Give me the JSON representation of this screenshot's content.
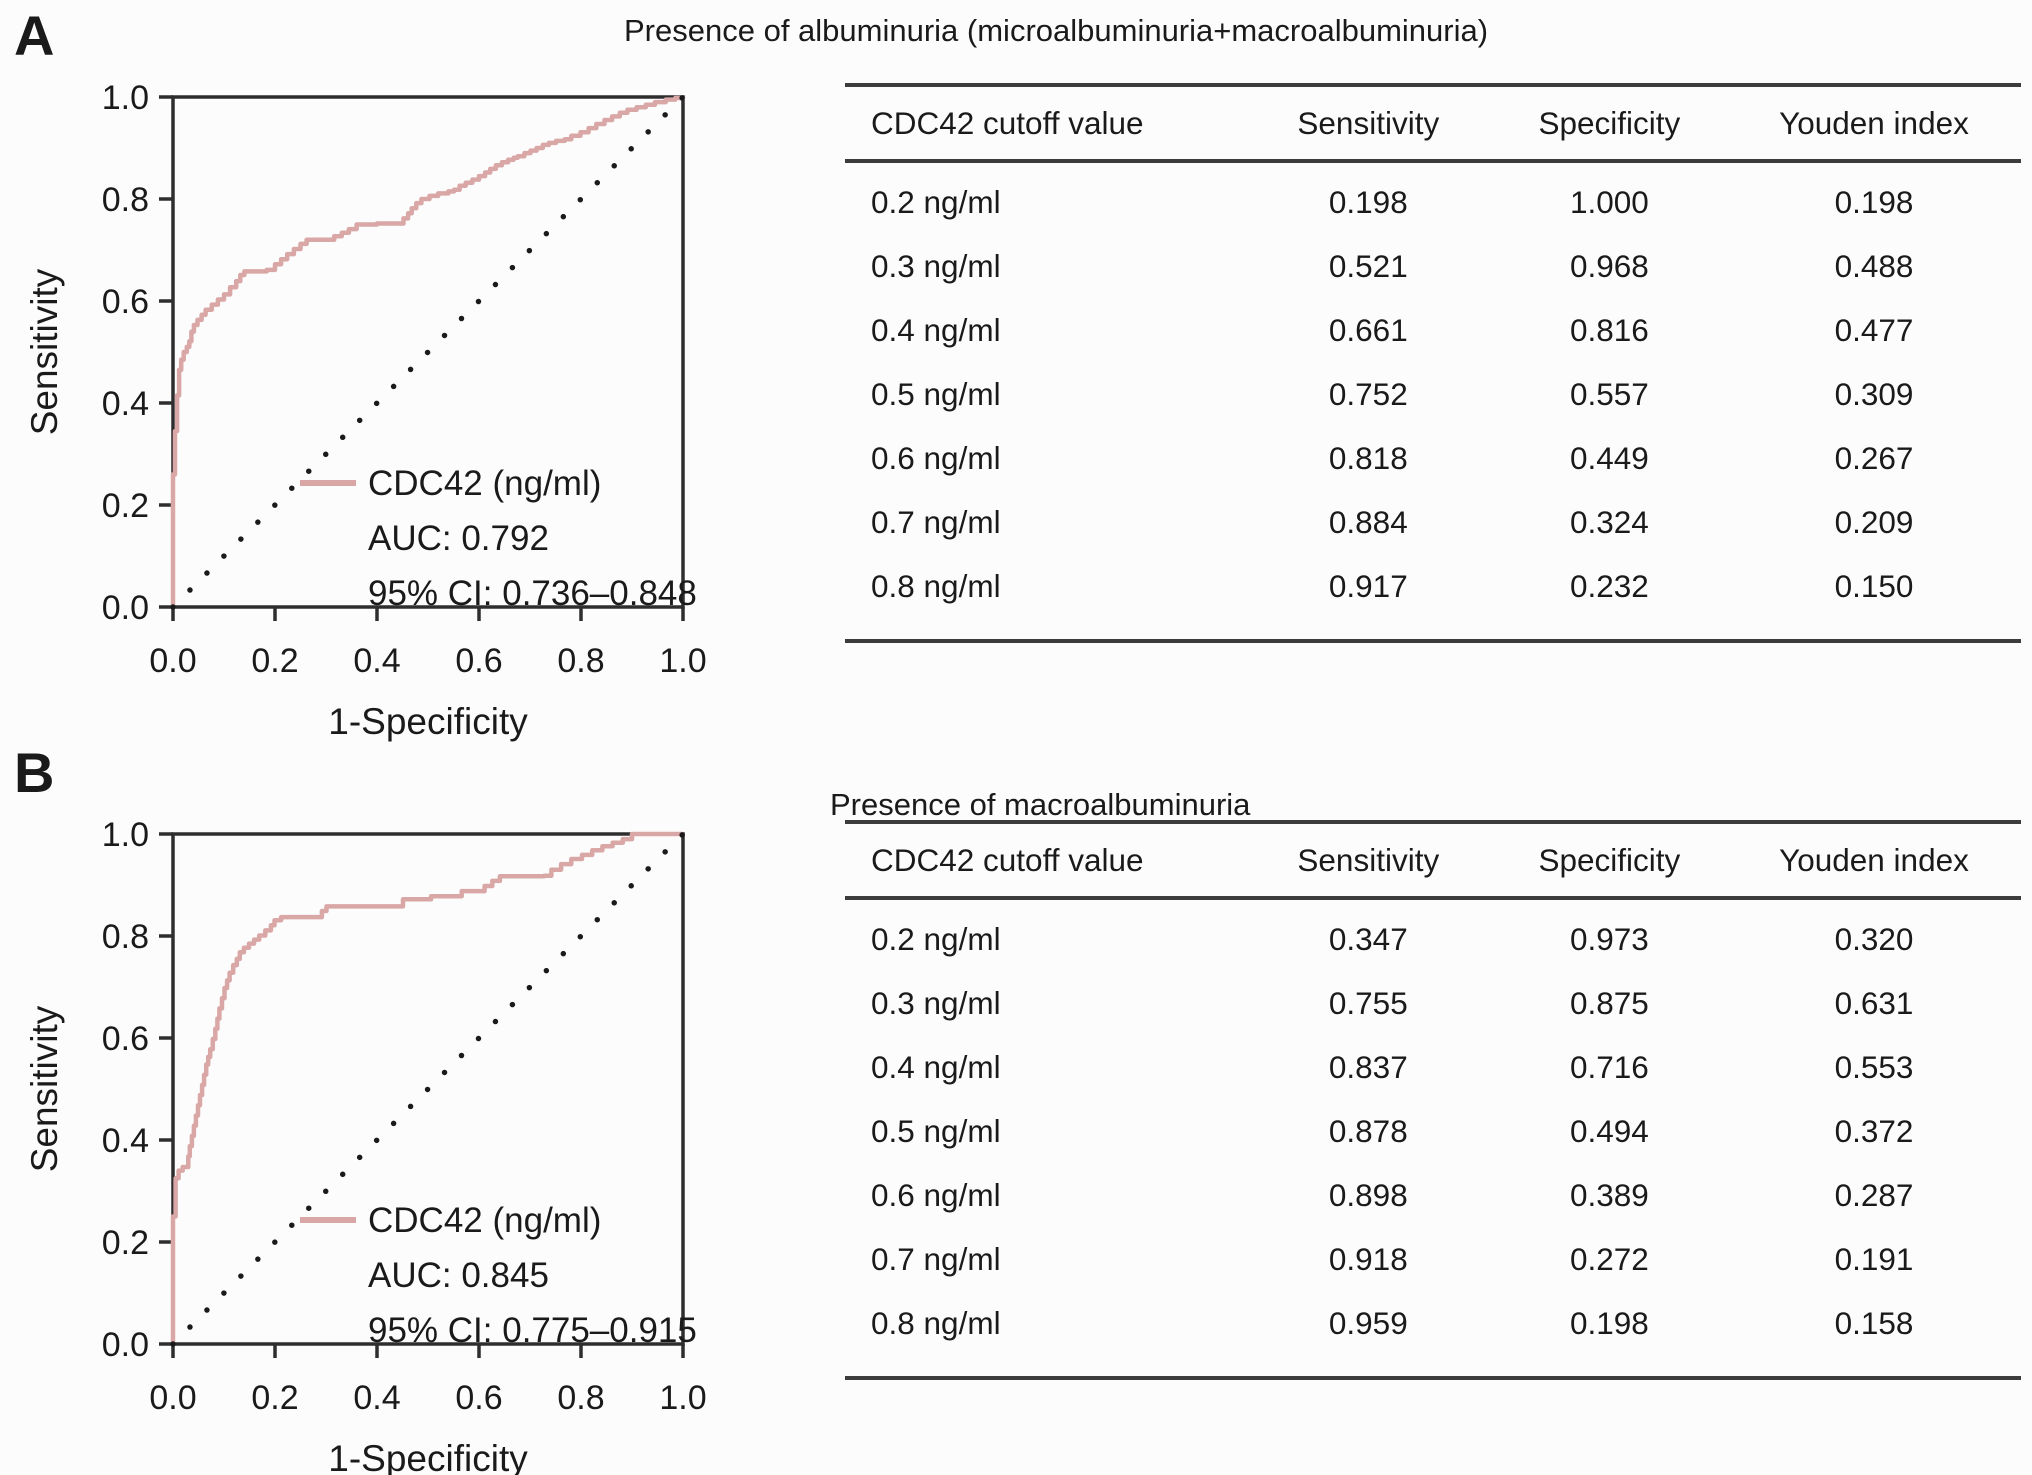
{
  "colors": {
    "curve": "#d9a7a6",
    "axis": "#2e2e2e",
    "text": "#1a1a1a",
    "rule": "#3c3c3c",
    "dots": "#1a1a1a",
    "background": "#fcfcfc"
  },
  "panels": [
    {
      "label": "A",
      "title": "Presence of albuminuria (microalbuminuria+macroalbuminuria)",
      "legend": {
        "series": "CDC42 (ng/ml)",
        "auc": "AUC: 0.792",
        "ci": "95% CI: 0.736–0.848"
      },
      "table": {
        "headers": [
          "CDC42 cutoff value",
          "Sensitivity",
          "Specificity",
          "Youden index"
        ],
        "rows": [
          [
            "0.2 ng/ml",
            "0.198",
            "1.000",
            "0.198"
          ],
          [
            "0.3 ng/ml",
            "0.521",
            "0.968",
            "0.488"
          ],
          [
            "0.4 ng/ml",
            "0.661",
            "0.816",
            "0.477"
          ],
          [
            "0.5 ng/ml",
            "0.752",
            "0.557",
            "0.309"
          ],
          [
            "0.6 ng/ml",
            "0.818",
            "0.449",
            "0.267"
          ],
          [
            "0.7 ng/ml",
            "0.884",
            "0.324",
            "0.209"
          ],
          [
            "0.8 ng/ml",
            "0.917",
            "0.232",
            "0.150"
          ]
        ]
      }
    },
    {
      "label": "B",
      "title": "Presence of macroalbuminuria",
      "legend": {
        "series": "CDC42 (ng/ml)",
        "auc": "AUC: 0.845",
        "ci": "95% CI: 0.775–0.915"
      },
      "table": {
        "headers": [
          "CDC42 cutoff value",
          "Sensitivity",
          "Specificity",
          "Youden index"
        ],
        "rows": [
          [
            "0.2 ng/ml",
            "0.347",
            "0.973",
            "0.320"
          ],
          [
            "0.3 ng/ml",
            "0.755",
            "0.875",
            "0.631"
          ],
          [
            "0.4 ng/ml",
            "0.837",
            "0.716",
            "0.553"
          ],
          [
            "0.5 ng/ml",
            "0.878",
            "0.494",
            "0.372"
          ],
          [
            "0.6 ng/ml",
            "0.898",
            "0.389",
            "0.287"
          ],
          [
            "0.7 ng/ml",
            "0.918",
            "0.272",
            "0.191"
          ],
          [
            "0.8 ng/ml",
            "0.959",
            "0.198",
            "0.158"
          ]
        ]
      }
    }
  ],
  "chart_data": [
    {
      "type": "line",
      "title": "ROC curve — presence of albuminuria (micro+macro)",
      "xlabel": "1-Specificity",
      "ylabel": "Sensitivity",
      "xlim": [
        0,
        1
      ],
      "ylim": [
        0,
        1
      ],
      "xticks": [
        "0.0",
        "0.2",
        "0.4",
        "0.6",
        "0.8",
        "1.0"
      ],
      "yticks": [
        "0.0",
        "0.2",
        "0.4",
        "0.6",
        "0.8",
        "1.0"
      ],
      "grid": false,
      "legend_position": "lower-right",
      "auc": 0.792,
      "ci_95": [
        0.736,
        0.848
      ],
      "series": [
        {
          "name": "CDC42 (ng/ml)",
          "draw": "step",
          "points": [
            [
              0,
              0
            ],
            [
              0,
              0.26
            ],
            [
              0.004,
              0.305
            ],
            [
              0.004,
              0.345
            ],
            [
              0.008,
              0.385
            ],
            [
              0.008,
              0.415
            ],
            [
              0.012,
              0.435
            ],
            [
              0.012,
              0.465
            ],
            [
              0.016,
              0.485
            ],
            [
              0.021,
              0.5
            ],
            [
              0.027,
              0.51
            ],
            [
              0.032,
              0.521
            ],
            [
              0.036,
              0.54
            ],
            [
              0.041,
              0.553
            ],
            [
              0.048,
              0.563
            ],
            [
              0.056,
              0.573
            ],
            [
              0.064,
              0.583
            ],
            [
              0.076,
              0.593
            ],
            [
              0.088,
              0.603
            ],
            [
              0.1,
              0.613
            ],
            [
              0.112,
              0.627
            ],
            [
              0.124,
              0.639
            ],
            [
              0.132,
              0.651
            ],
            [
              0.14,
              0.658
            ],
            [
              0.175,
              0.658
            ],
            [
              0.184,
              0.661
            ],
            [
              0.2,
              0.672
            ],
            [
              0.212,
              0.682
            ],
            [
              0.224,
              0.692
            ],
            [
              0.237,
              0.702
            ],
            [
              0.25,
              0.712
            ],
            [
              0.262,
              0.72
            ],
            [
              0.3,
              0.72
            ],
            [
              0.316,
              0.727
            ],
            [
              0.331,
              0.734
            ],
            [
              0.345,
              0.741
            ],
            [
              0.36,
              0.75
            ],
            [
              0.4,
              0.752
            ],
            [
              0.443,
              0.752
            ],
            [
              0.452,
              0.762
            ],
            [
              0.461,
              0.772
            ],
            [
              0.468,
              0.782
            ],
            [
              0.477,
              0.792
            ],
            [
              0.487,
              0.8
            ],
            [
              0.503,
              0.806
            ],
            [
              0.52,
              0.811
            ],
            [
              0.54,
              0.815
            ],
            [
              0.551,
              0.818
            ],
            [
              0.562,
              0.826
            ],
            [
              0.574,
              0.832
            ],
            [
              0.587,
              0.838
            ],
            [
              0.6,
              0.845
            ],
            [
              0.612,
              0.852
            ],
            [
              0.622,
              0.859
            ],
            [
              0.633,
              0.866
            ],
            [
              0.645,
              0.872
            ],
            [
              0.657,
              0.877
            ],
            [
              0.668,
              0.881
            ],
            [
              0.676,
              0.884
            ],
            [
              0.689,
              0.89
            ],
            [
              0.701,
              0.895
            ],
            [
              0.713,
              0.9
            ],
            [
              0.725,
              0.906
            ],
            [
              0.737,
              0.91
            ],
            [
              0.751,
              0.914
            ],
            [
              0.768,
              0.917
            ],
            [
              0.781,
              0.924
            ],
            [
              0.799,
              0.931
            ],
            [
              0.815,
              0.939
            ],
            [
              0.83,
              0.947
            ],
            [
              0.846,
              0.955
            ],
            [
              0.861,
              0.962
            ],
            [
              0.876,
              0.969
            ],
            [
              0.891,
              0.975
            ],
            [
              0.909,
              0.98
            ],
            [
              0.927,
              0.985
            ],
            [
              0.945,
              0.99
            ],
            [
              0.966,
              0.995
            ],
            [
              0.985,
              0.998
            ],
            [
              1,
              1
            ]
          ]
        },
        {
          "name": "chance reference line",
          "draw": "dotted",
          "points": [
            [
              0,
              0
            ],
            [
              1,
              1
            ]
          ]
        }
      ]
    },
    {
      "type": "line",
      "title": "ROC curve — presence of macroalbuminuria",
      "xlabel": "1-Specificity",
      "ylabel": "Sensitivity",
      "xlim": [
        0,
        1
      ],
      "ylim": [
        0,
        1
      ],
      "xticks": [
        "0.0",
        "0.2",
        "0.4",
        "0.6",
        "0.8",
        "1.0"
      ],
      "yticks": [
        "0.0",
        "0.2",
        "0.4",
        "0.6",
        "0.8",
        "1.0"
      ],
      "grid": false,
      "legend_position": "lower-right",
      "auc": 0.845,
      "ci_95": [
        0.775,
        0.915
      ],
      "series": [
        {
          "name": "CDC42 (ng/ml)",
          "draw": "step",
          "points": [
            [
              0,
              0
            ],
            [
              0,
              0.25
            ],
            [
              0.005,
              0.29
            ],
            [
              0.005,
              0.325
            ],
            [
              0.011,
              0.34
            ],
            [
              0.019,
              0.347
            ],
            [
              0.027,
              0.347
            ],
            [
              0.03,
              0.368
            ],
            [
              0.033,
              0.388
            ],
            [
              0.037,
              0.408
            ],
            [
              0.041,
              0.428
            ],
            [
              0.045,
              0.448
            ],
            [
              0.049,
              0.468
            ],
            [
              0.053,
              0.488
            ],
            [
              0.057,
              0.508
            ],
            [
              0.061,
              0.528
            ],
            [
              0.065,
              0.548
            ],
            [
              0.069,
              0.563
            ],
            [
              0.073,
              0.578
            ],
            [
              0.078,
              0.598
            ],
            [
              0.083,
              0.618
            ],
            [
              0.087,
              0.638
            ],
            [
              0.091,
              0.658
            ],
            [
              0.096,
              0.678
            ],
            [
              0.101,
              0.698
            ],
            [
              0.106,
              0.713
            ],
            [
              0.111,
              0.728
            ],
            [
              0.118,
              0.743
            ],
            [
              0.125,
              0.755
            ],
            [
              0.131,
              0.768
            ],
            [
              0.139,
              0.777
            ],
            [
              0.149,
              0.785
            ],
            [
              0.159,
              0.793
            ],
            [
              0.169,
              0.801
            ],
            [
              0.181,
              0.811
            ],
            [
              0.192,
              0.821
            ],
            [
              0.199,
              0.831
            ],
            [
              0.212,
              0.837
            ],
            [
              0.284,
              0.837
            ],
            [
              0.292,
              0.849
            ],
            [
              0.301,
              0.858
            ],
            [
              0.44,
              0.858
            ],
            [
              0.451,
              0.872
            ],
            [
              0.5,
              0.872
            ],
            [
              0.506,
              0.878
            ],
            [
              0.556,
              0.878
            ],
            [
              0.566,
              0.888
            ],
            [
              0.601,
              0.888
            ],
            [
              0.611,
              0.898
            ],
            [
              0.626,
              0.908
            ],
            [
              0.641,
              0.917
            ],
            [
              0.728,
              0.918
            ],
            [
              0.742,
              0.93
            ],
            [
              0.761,
              0.941
            ],
            [
              0.781,
              0.951
            ],
            [
              0.802,
              0.959
            ],
            [
              0.822,
              0.968
            ],
            [
              0.842,
              0.976
            ],
            [
              0.862,
              0.983
            ],
            [
              0.882,
              0.99
            ],
            [
              0.9,
              1
            ],
            [
              1,
              1
            ]
          ]
        },
        {
          "name": "chance reference line",
          "draw": "dotted",
          "points": [
            [
              0,
              0
            ],
            [
              1,
              1
            ]
          ]
        }
      ]
    }
  ]
}
